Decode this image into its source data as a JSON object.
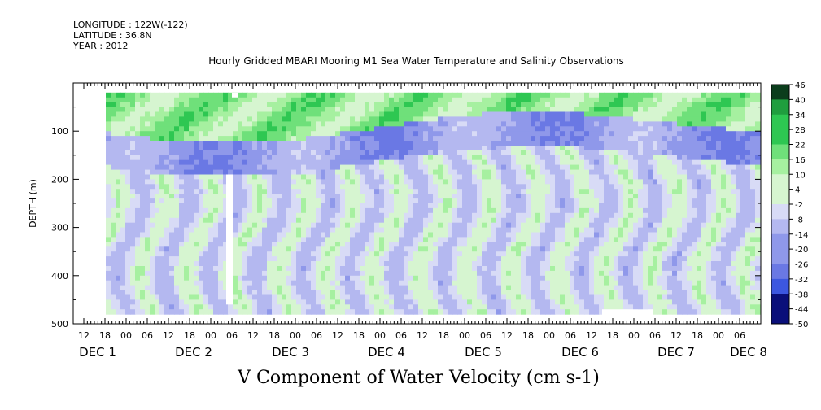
{
  "header": {
    "longitude": "LONGITUDE : 122W(-122)",
    "latitude": "LATITUDE : 36.8N",
    "year": "YEAR : 2012"
  },
  "chart_data": {
    "type": "heatmap",
    "title": "Hourly Gridded MBARI Mooring M1 Sea Water Temperature and Salinity Observations",
    "xlabel": "V Component of Water Velocity (cm s-1)",
    "ylabel": "DEPTH (m)",
    "y_ticks": [
      "100",
      "200",
      "300",
      "400",
      "500"
    ],
    "ylim": [
      500,
      0
    ],
    "x_hour_ticks": [
      "12",
      "18",
      "00",
      "06",
      "12",
      "18",
      "00",
      "06",
      "12",
      "18",
      "00",
      "06",
      "12",
      "18",
      "00",
      "06",
      "12",
      "18",
      "00",
      "06",
      "12",
      "18",
      "00",
      "06",
      "12",
      "18",
      "00",
      "06",
      "12",
      "18",
      "00",
      "06"
    ],
    "x_day_labels": [
      "DEC  1",
      "DEC  2",
      "DEC  3",
      "DEC  4",
      "DEC  5",
      "DEC  6",
      "DEC  7",
      "DEC  8"
    ],
    "colorbar": {
      "ticks": [
        "46",
        "40",
        "34",
        "28",
        "22",
        "16",
        "10",
        "4",
        "-2",
        "-8",
        "-14",
        "-20",
        "-26",
        "-32",
        "-38",
        "-44",
        "-50"
      ],
      "colors": {
        "strong_positive": "#0b3d1c",
        "positive": "#2ec752",
        "weak_positive": "#a6f0a0",
        "weak_negative": "#b4b8f0",
        "negative": "#3c57e0",
        "strong_negative": "#0a0f7a"
      }
    },
    "description_bands": [
      {
        "depth_range": [
          20,
          110
        ],
        "sign": "positive"
      },
      {
        "depth_range": [
          110,
          200
        ],
        "sign": "negative"
      },
      {
        "depth_range": [
          200,
          480
        ],
        "sign": "mixed"
      }
    ]
  }
}
